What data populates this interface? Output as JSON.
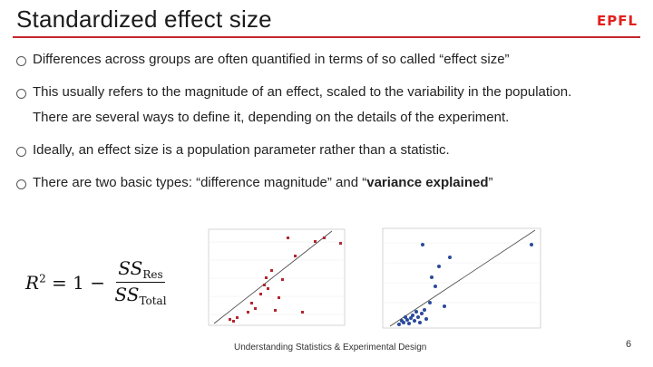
{
  "slide": {
    "title": "Standardized effect size",
    "logo_text": "EPFL",
    "bullets": [
      {
        "text": "Differences across groups are often quantified in terms of so called “effect size”"
      },
      {
        "text": "This usually refers to the magnitude of an effect, scaled to the variability in the population."
      },
      {
        "text": "Ideally, an effect size is a population parameter rather than a statistic."
      },
      {
        "text_before": "There are two basic types: “difference magnitude” and “",
        "text_bold": "variance explained",
        "text_after": "”"
      }
    ],
    "bullet2_continuation": "There are several ways to define it, depending on the details of the experiment.",
    "formula": {
      "lhs": "R",
      "exp": "2",
      "eq": " = 1 − ",
      "num": "SS",
      "num_sub": "Res",
      "den": "SS",
      "den_sub": "Total"
    },
    "footer": "Understanding Statistics & Experimental Design",
    "page_number": "6"
  },
  "colors": {
    "accent_rule": "#c6262e",
    "logo": "#e2201c",
    "plot1_points": "#b3262e",
    "plot2_points": "#2b4a9a"
  }
}
